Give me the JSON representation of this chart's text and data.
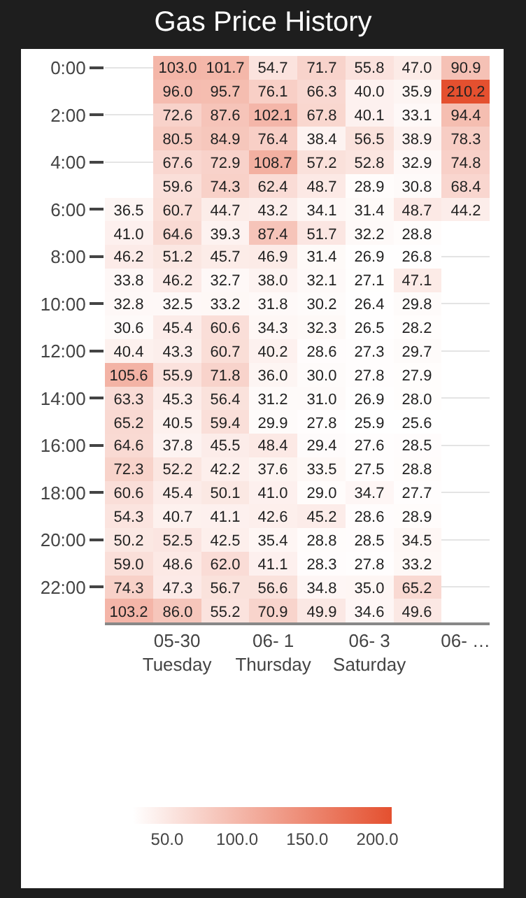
{
  "chart_data": {
    "type": "heatmap",
    "title": "Gas Price History",
    "categories": [
      null,
      "05-30\nTuesday",
      null,
      "06- 1\nThursday",
      null,
      "06- 3\nSaturday",
      null,
      "06- …"
    ],
    "y_categories": [
      "0:00",
      null,
      "2:00",
      null,
      "4:00",
      null,
      "6:00",
      null,
      "8:00",
      null,
      "10:00",
      null,
      "12:00",
      null,
      "14:00",
      null,
      "16:00",
      null,
      "18:00",
      null,
      "20:00",
      null,
      "22:00",
      null
    ],
    "cells": [
      [
        null,
        103.0,
        101.7,
        54.7,
        71.7,
        55.8,
        47.0,
        90.9
      ],
      [
        null,
        96.0,
        95.7,
        76.1,
        66.3,
        40.0,
        35.9,
        210.2
      ],
      [
        null,
        72.6,
        87.6,
        102.1,
        67.8,
        40.1,
        33.1,
        94.4
      ],
      [
        null,
        80.5,
        84.9,
        76.4,
        38.4,
        56.5,
        38.9,
        78.3
      ],
      [
        null,
        67.6,
        72.9,
        108.7,
        57.2,
        52.8,
        32.9,
        74.8
      ],
      [
        null,
        59.6,
        74.3,
        62.4,
        48.7,
        28.9,
        30.8,
        68.4
      ],
      [
        36.5,
        60.7,
        44.7,
        43.2,
        34.1,
        31.4,
        48.7,
        44.2
      ],
      [
        41.0,
        64.6,
        39.3,
        87.4,
        51.7,
        32.2,
        28.8,
        null
      ],
      [
        46.2,
        51.2,
        45.7,
        46.9,
        31.4,
        26.9,
        26.8,
        null
      ],
      [
        33.8,
        46.2,
        32.7,
        38.0,
        32.1,
        27.1,
        47.1,
        null
      ],
      [
        32.8,
        32.5,
        33.2,
        31.8,
        30.2,
        26.4,
        29.8,
        null
      ],
      [
        30.6,
        45.4,
        60.6,
        34.3,
        32.3,
        26.5,
        28.2,
        null
      ],
      [
        40.4,
        43.3,
        60.7,
        40.2,
        28.6,
        27.3,
        29.7,
        null
      ],
      [
        105.6,
        55.9,
        71.8,
        36.0,
        30.0,
        27.8,
        27.9,
        null
      ],
      [
        63.3,
        45.3,
        56.4,
        31.2,
        31.0,
        26.9,
        28.0,
        null
      ],
      [
        65.2,
        40.5,
        59.4,
        29.9,
        27.8,
        25.9,
        25.6,
        null
      ],
      [
        64.6,
        37.8,
        45.5,
        48.4,
        29.4,
        27.6,
        28.5,
        null
      ],
      [
        72.3,
        52.2,
        42.2,
        37.6,
        33.5,
        27.5,
        28.8,
        null
      ],
      [
        60.6,
        45.4,
        50.1,
        41.0,
        29.0,
        34.7,
        27.7,
        null
      ],
      [
        54.3,
        40.7,
        41.1,
        42.6,
        45.2,
        28.6,
        28.9,
        null
      ],
      [
        50.2,
        52.5,
        42.5,
        35.4,
        28.8,
        28.5,
        34.5,
        null
      ],
      [
        59.0,
        48.6,
        62.0,
        41.1,
        28.3,
        27.8,
        33.2,
        null
      ],
      [
        74.3,
        47.3,
        56.7,
        56.6,
        34.8,
        35.0,
        65.2,
        null
      ],
      [
        103.2,
        86.0,
        55.2,
        70.9,
        49.9,
        34.6,
        49.6,
        null
      ]
    ],
    "data_labels": true,
    "cell_labels": [
      [
        null,
        "103.0",
        "101.7",
        "54.7",
        "71.7",
        "55.8",
        "47.0",
        "90.9"
      ],
      [
        null,
        "96.0",
        "95.7",
        "76.1",
        "66.3",
        "40.0",
        "35.9",
        "210.2"
      ],
      [
        null,
        "72.6",
        "87.6",
        "102.1",
        "67.8",
        "40.1",
        "33.1",
        "94.4"
      ],
      [
        null,
        "80.5",
        "84.9",
        "76.4",
        "38.4",
        "56.5",
        "38.9",
        "78.3"
      ],
      [
        null,
        "67.6",
        "72.9",
        "108.7",
        "57.2",
        "52.8",
        "32.9",
        "74.8"
      ],
      [
        null,
        "59.6",
        "74.3",
        "62.4",
        "48.7",
        "28.9",
        "30.8",
        "68.4"
      ],
      [
        "36.5",
        "60.7",
        "44.7",
        "43.2",
        "34.1",
        "31.4",
        "48.7",
        "44.2"
      ],
      [
        "41.0",
        "64.6",
        "39.3",
        "87.4",
        "51.7",
        "32.2",
        "28.8",
        null
      ],
      [
        "46.2",
        "51.2",
        "45.7",
        "46.9",
        "31.4",
        "26.9",
        "26.8",
        null
      ],
      [
        "33.8",
        "46.2",
        "32.7",
        "38.0",
        "32.1",
        "27.1",
        "47.1",
        null
      ],
      [
        "32.8",
        "32.5",
        "33.2",
        "31.8",
        "30.2",
        "26.4",
        "29.8",
        null
      ],
      [
        "30.6",
        "45.4",
        "60.6",
        "34.3",
        "32.3",
        "26.5",
        "28.2",
        null
      ],
      [
        "40.4",
        "43.3",
        "60.7",
        "40.2",
        "28.6",
        "27.3",
        "29.7",
        null
      ],
      [
        "105.6",
        "55.9",
        "71.8",
        "36.0",
        "30.0",
        "27.8",
        "27.9",
        null
      ],
      [
        "63.3",
        "45.3",
        "56.4",
        "31.2",
        "31.0",
        "26.9",
        "28.0",
        null
      ],
      [
        "65.2",
        "40.5",
        "59.4",
        "29.9",
        "27.8",
        "25.9",
        "25.6",
        null
      ],
      [
        "64.6",
        "37.8",
        "45.5",
        "48.4",
        "29.4",
        "27.6",
        "28.5",
        null
      ],
      [
        "72.3",
        "52.2",
        "42.2",
        "37.6",
        "33.5",
        "27.5",
        "28.8",
        null
      ],
      [
        "60.6",
        "45.4",
        "50.1",
        "41.0",
        "29.0",
        "34.7",
        "27.7",
        null
      ],
      [
        "54.3",
        "40.7",
        "41.1",
        "42.6",
        "45.2",
        "28.6",
        "28.9",
        null
      ],
      [
        "50.2",
        "52.5",
        "42.5",
        "35.4",
        "28.8",
        "28.5",
        "34.5",
        null
      ],
      [
        "59.0",
        "48.6",
        "62.0",
        "41.1",
        "28.3",
        "27.8",
        "33.2",
        null
      ],
      [
        "74.3",
        "47.3",
        "56.7",
        "56.6",
        "34.8",
        "35.0",
        "65.2",
        null
      ],
      [
        "103.2",
        "86.0",
        "55.2",
        "70.9",
        "49.9",
        "34.6",
        "49.6",
        null
      ]
    ],
    "clim": [
      25.6,
      210.2
    ],
    "cticks": [
      {
        "value": 50,
        "label": "50.0"
      },
      {
        "value": 100,
        "label": "100.0"
      },
      {
        "value": 150,
        "label": "150.0"
      },
      {
        "value": 200,
        "label": "200.0"
      }
    ],
    "color": "#e4502f",
    "grid": "y"
  }
}
